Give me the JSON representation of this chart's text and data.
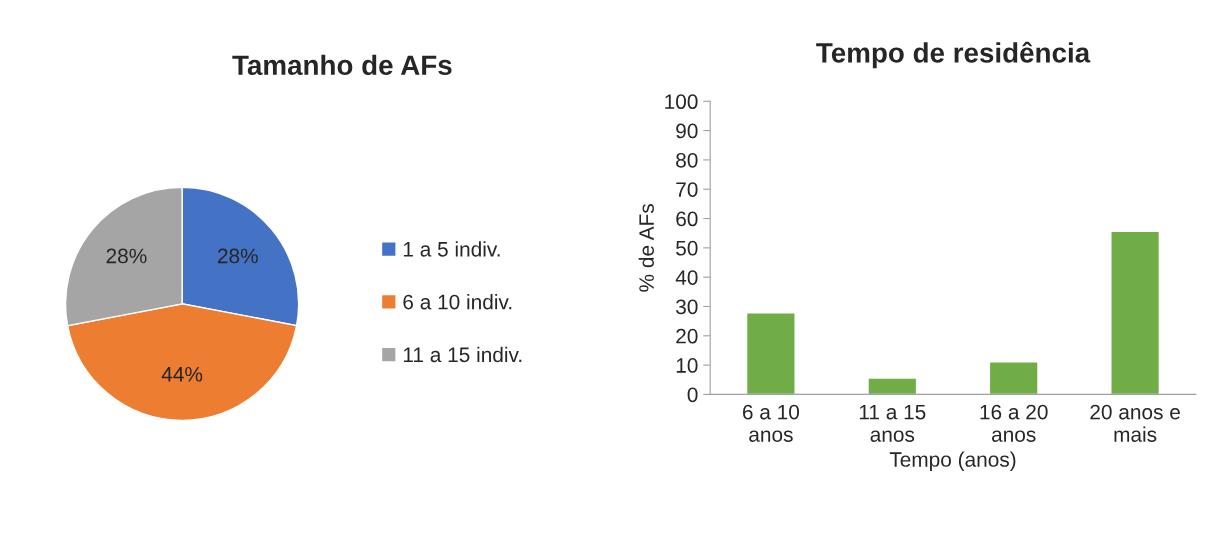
{
  "chart_data": [
    {
      "type": "pie",
      "title": "Tamanho de AFs",
      "categories": [
        "1 a 5 indiv.",
        "6 a 10 indiv.",
        "11 a 15 indiv."
      ],
      "values": [
        28,
        44,
        28
      ],
      "colors": [
        "#4472c4",
        "#ed7d31",
        "#a5a5a5"
      ],
      "value_labels": [
        "28%",
        "44%",
        "28%"
      ],
      "legend": "right"
    },
    {
      "type": "bar",
      "title": "Tempo de residência",
      "xlabel": "Tempo (anos)",
      "ylabel": "% de AFs",
      "categories": [
        "6 a 10\nanos",
        "11 a 15\nanos",
        "16 a 20\nanos",
        "20 anos e\nmais"
      ],
      "values": [
        27.8,
        5.6,
        11.1,
        55.6
      ],
      "color": "#70ad47",
      "ylim": [
        0,
        100
      ],
      "yticks": [
        0,
        10,
        20,
        30,
        40,
        50,
        60,
        70,
        80,
        90,
        100
      ],
      "grid": false
    }
  ]
}
